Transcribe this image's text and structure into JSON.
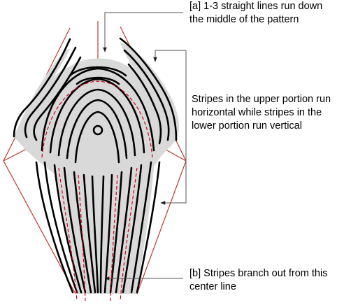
{
  "annotations": {
    "a_line1": "[a] 1-3 straight lines run down",
    "a_line2": "the middle of the pattern",
    "mid_line1": "Stripes in the upper portion run",
    "mid_line2": "horizontal while stripes in the",
    "mid_line3": "lower portion run vertical",
    "b_line1": "[b] Stripes branch out from this",
    "b_line2": "center line"
  },
  "colors": {
    "stripe_outline": "#000000",
    "stripe_fill": "#d9d9d9",
    "guide_line": "#c0392b",
    "dashed_line": "#d0021b",
    "annotation_line": "#555555",
    "background": "#ffffff"
  },
  "icons": [
    "arrow-down-icon",
    "arrow-left-icon"
  ]
}
